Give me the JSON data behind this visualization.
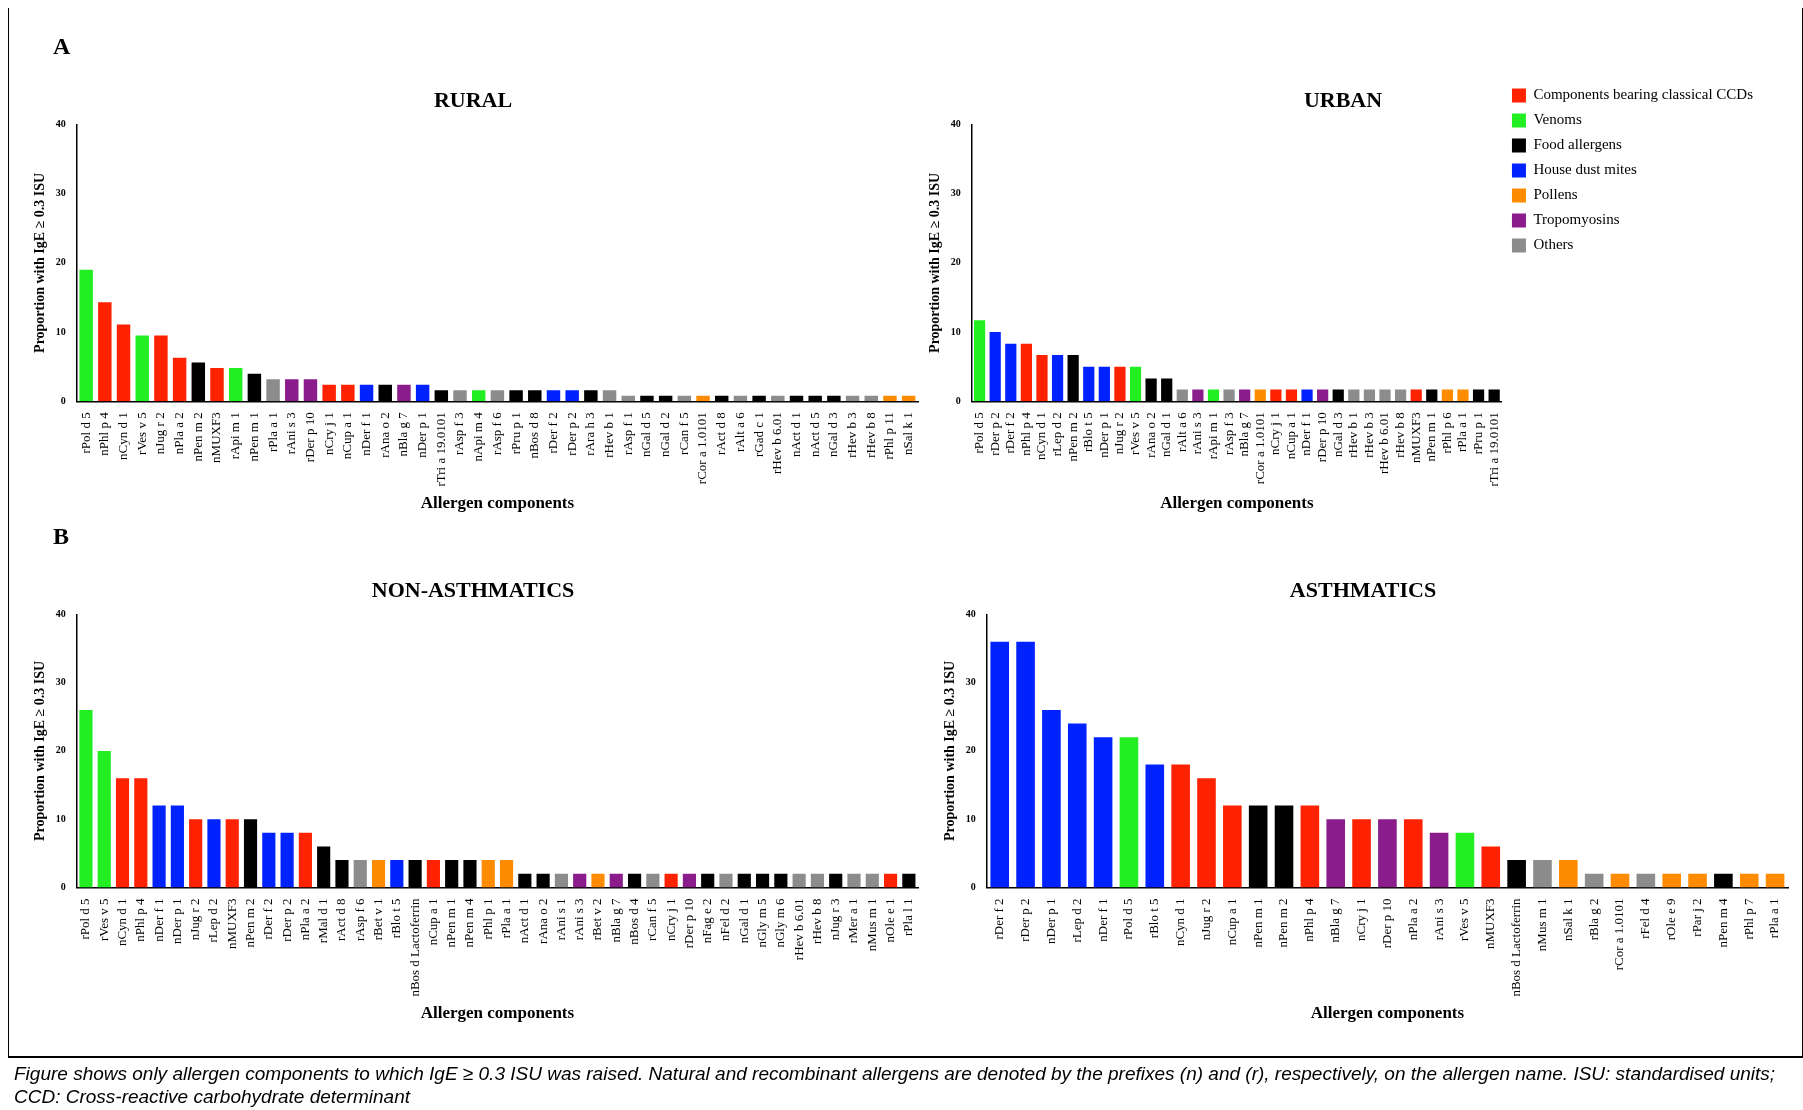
{
  "chart_data": [
    {
      "type": "bar",
      "title": "RURAL",
      "xlabel": "Allergen components",
      "ylabel": "Proportion with IgE ≥ 0.3 ISU",
      "annotations": [
        "A"
      ],
      "legend": false,
      "ylim": [
        0,
        40
      ],
      "yticks": [
        0,
        10,
        20,
        30,
        40
      ],
      "categories": [
        "rPol d 5",
        "nPhl p 4",
        "nCyn d 1",
        "rVes v 5",
        "nJug r 2",
        "nPla a 2",
        "nPen m 2",
        "nMUXF3",
        "rApi m 1",
        "nPen m 1",
        "rPla a 1",
        "rAni s 3",
        "rDer p 10",
        "nCry j 1",
        "nCup a 1",
        "nDer f 1",
        "rAna o 2",
        "nBla g 7",
        "nDer p 1",
        "rTri a 19.0101",
        "rAsp f 3",
        "nApi m 4",
        "rAsp f 6",
        "rPru p 1",
        "nBos d 8",
        "rDer f 2",
        "rDer p 2",
        "rAra h 3",
        "rHev b 1",
        "rAsp f 1",
        "nGal d 5",
        "nGal d 2",
        "rCan f 5",
        "rCor a 1.0101",
        "rAct d 8",
        "rAlt a 6",
        "rGad c 1",
        "rHev b 6.01",
        "nAct d 1",
        "nAct d 5",
        "nGal d 3",
        "rHev b 3",
        "rHev b 8",
        "rPhl p 11",
        "nSal k 1"
      ],
      "values": [
        19,
        14.3,
        11.1,
        9.5,
        9.5,
        6.3,
        5.6,
        4.8,
        4.8,
        4,
        3.2,
        3.2,
        3.2,
        2.4,
        2.4,
        2.4,
        2.4,
        2.4,
        2.4,
        1.6,
        1.6,
        1.6,
        1.6,
        1.6,
        1.6,
        1.6,
        1.6,
        1.6,
        1.6,
        0.8,
        0.8,
        0.8,
        0.8,
        0.8,
        0.8,
        0.8,
        0.8,
        0.8,
        0.8,
        0.8,
        0.8,
        0.8,
        0.8,
        0.8,
        0.8
      ],
      "colors": [
        "#22ee22",
        "#ff2200",
        "#ff2200",
        "#22ee22",
        "#ff2200",
        "#ff2200",
        "#000000",
        "#ff2200",
        "#22ee22",
        "#000000",
        "#8c8c8c",
        "#8b1c8b",
        "#8b1c8b",
        "#ff2200",
        "#ff2200",
        "#0022ff",
        "#000000",
        "#8b1c8b",
        "#0022ff",
        "#000000",
        "#8c8c8c",
        "#22ee22",
        "#8c8c8c",
        "#000000",
        "#000000",
        "#0022ff",
        "#0022ff",
        "#000000",
        "#8c8c8c",
        "#8c8c8c",
        "#000000",
        "#000000",
        "#8c8c8c",
        "#ff8c00",
        "#000000",
        "#8c8c8c",
        "#000000",
        "#8c8c8c",
        "#000000",
        "#000000",
        "#000000",
        "#8c8c8c",
        "#8c8c8c",
        "#ff8c00",
        "#ff8c00"
      ]
    },
    {
      "type": "bar",
      "title": "URBAN",
      "xlabel": "Allergen components",
      "ylabel": "Proportion with IgE ≥ 0.3 ISU",
      "legend": "right",
      "ylim": [
        0,
        40
      ],
      "yticks": [
        0,
        10,
        20,
        30,
        40
      ],
      "categories": [
        "rPol d 5",
        "rDer p 2",
        "rDer f 2",
        "nPhl p 4",
        "nCyn d 1",
        "rLep d 2",
        "nPen m 2",
        "rBlo t 5",
        "nDer p 1",
        "nJug r 2",
        "rVes v 5",
        "rAna o 2",
        "nGal d 1",
        "rAlt a 6",
        "rAni s 3",
        "rApi m 1",
        "rAsp f 3",
        "nBla g 7",
        "rCor a 1.0101",
        "nCry j 1",
        "nCup a 1",
        "nDer f 1",
        "rDer p 10",
        "nGal d 3",
        "rHev b 1",
        "rHev b 3",
        "rHev b 6.01",
        "rHev b 8",
        "nMUXF3",
        "nPen m 1",
        "rPhl p 6",
        "rPla a 1",
        "rPru p 1",
        "rTri a 19.0101"
      ],
      "series": [
        {
          "name": "Components bearing classical CCDs",
          "color": "#ff2200",
          "values": [
            null,
            null,
            null,
            8.3,
            6.7,
            null,
            null,
            null,
            null,
            5,
            null,
            null,
            null,
            null,
            null,
            null,
            null,
            null,
            null,
            1.7,
            1.7,
            null,
            null,
            null,
            null,
            null,
            null,
            null,
            1.7,
            null,
            null,
            null,
            null,
            null
          ]
        },
        {
          "name": "Venoms",
          "color": "#22ee22",
          "values": [
            11.7,
            null,
            null,
            null,
            null,
            null,
            null,
            null,
            null,
            null,
            5,
            null,
            null,
            null,
            null,
            1.7,
            null,
            null,
            null,
            null,
            null,
            null,
            null,
            null,
            null,
            null,
            null,
            null,
            null,
            null,
            null,
            null,
            null,
            null
          ]
        },
        {
          "name": "Food allergens",
          "color": "#000000",
          "values": [
            null,
            null,
            null,
            null,
            null,
            null,
            6.7,
            null,
            null,
            null,
            null,
            3.3,
            3.3,
            null,
            null,
            null,
            null,
            null,
            null,
            null,
            null,
            null,
            null,
            1.7,
            null,
            null,
            null,
            null,
            null,
            1.7,
            null,
            null,
            1.7,
            1.7
          ]
        },
        {
          "name": "House dust mites",
          "color": "#0022ff",
          "values": [
            null,
            10,
            8.3,
            null,
            null,
            6.7,
            null,
            5,
            5,
            null,
            null,
            null,
            null,
            null,
            null,
            null,
            null,
            null,
            null,
            null,
            null,
            1.7,
            null,
            null,
            null,
            null,
            null,
            null,
            null,
            null,
            null,
            null,
            null,
            null
          ]
        },
        {
          "name": "Pollens",
          "color": "#ff8c00",
          "values": [
            null,
            null,
            null,
            null,
            null,
            null,
            null,
            null,
            null,
            null,
            null,
            null,
            null,
            null,
            null,
            null,
            null,
            null,
            1.7,
            null,
            null,
            null,
            null,
            null,
            null,
            null,
            null,
            null,
            null,
            null,
            1.7,
            1.7,
            null,
            null
          ]
        },
        {
          "name": "Tropomyosins",
          "color": "#8b1c8b",
          "values": [
            null,
            null,
            null,
            null,
            null,
            null,
            null,
            null,
            null,
            null,
            null,
            null,
            null,
            null,
            1.7,
            null,
            null,
            1.7,
            null,
            null,
            null,
            null,
            1.7,
            null,
            null,
            null,
            null,
            null,
            null,
            null,
            null,
            null,
            null,
            null
          ]
        },
        {
          "name": "Others",
          "color": "#8c8c8c",
          "values": [
            null,
            null,
            null,
            null,
            null,
            null,
            null,
            null,
            null,
            null,
            null,
            null,
            null,
            1.7,
            null,
            null,
            1.7,
            null,
            null,
            null,
            null,
            null,
            null,
            null,
            1.7,
            1.7,
            1.7,
            1.7,
            null,
            null,
            null,
            null,
            null,
            null
          ]
        }
      ]
    },
    {
      "type": "bar",
      "title": "NON-ASTHMATICS",
      "xlabel": "Allergen components",
      "ylabel": "Proportion with IgE ≥ 0.3 ISU",
      "annotations": [
        "B"
      ],
      "legend": false,
      "ylim": [
        0,
        40
      ],
      "yticks": [
        0,
        10,
        20,
        30,
        40
      ],
      "categories": [
        "rPol d 5",
        "rVes v 5",
        "nCyn d 1",
        "nPhl p 4",
        "nDer f 1",
        "nDer p 1",
        "nJug r 2",
        "rLep d 2",
        "nMUXF3",
        "nPen m 2",
        "rDer f 2",
        "rDer p 2",
        "nPla a 2",
        "rMal d 1",
        "rAct d 8",
        "rAsp f 6",
        "rBet v 1",
        "rBlo t 5",
        "nBos d Lactoferrin",
        "nCup a 1",
        "nPen m 1",
        "nPen m 4",
        "rPhl p 1",
        "rPla a 1",
        "nAct d 1",
        "rAna o 2",
        "rAni s 1",
        "rAni s 3",
        "rBet v 2",
        "nBla g 7",
        "nBos d 4",
        "rCan f 5",
        "nCry j 1",
        "rDer p 10",
        "nFag e 2",
        "nFel d 2",
        "nGal d 1",
        "nGly m 5",
        "nGly m 6",
        "rHev b 6.01",
        "rHev b 8",
        "nJug r 3",
        "rMer a 1",
        "nMus m 1",
        "nOle e 1",
        "rPla l 1"
      ],
      "values": [
        26,
        20,
        16,
        16,
        12,
        12,
        10,
        10,
        10,
        10,
        8,
        8,
        8,
        6,
        4,
        4,
        4,
        4,
        4,
        4,
        4,
        4,
        4,
        4,
        2,
        2,
        2,
        2,
        2,
        2,
        2,
        2,
        2,
        2,
        2,
        2,
        2,
        2,
        2,
        2,
        2,
        2,
        2,
        2,
        2,
        2
      ],
      "colors": [
        "#22ee22",
        "#22ee22",
        "#ff2200",
        "#ff2200",
        "#0022ff",
        "#0022ff",
        "#ff2200",
        "#0022ff",
        "#ff2200",
        "#000000",
        "#0022ff",
        "#0022ff",
        "#ff2200",
        "#000000",
        "#000000",
        "#8c8c8c",
        "#ff8c00",
        "#0022ff",
        "#000000",
        "#ff2200",
        "#000000",
        "#000000",
        "#ff8c00",
        "#ff8c00",
        "#000000",
        "#000000",
        "#8c8c8c",
        "#8b1c8b",
        "#ff8c00",
        "#8b1c8b",
        "#000000",
        "#8c8c8c",
        "#ff2200",
        "#8b1c8b",
        "#000000",
        "#8c8c8c",
        "#000000",
        "#000000",
        "#000000",
        "#8c8c8c",
        "#8c8c8c",
        "#000000",
        "#8c8c8c",
        "#8c8c8c",
        "#ff2200",
        "#000000"
      ]
    },
    {
      "type": "bar",
      "title": "ASTHMATICS",
      "xlabel": "Allergen components",
      "ylabel": "Proportion with IgE ≥ 0.3 ISU",
      "annotations": [
        "Figure shows only allergen components to which IgE ≥ 0.3 ISU was raised. Natural and recombinant allergens are denoted by the prefixes (n) and (r), respectively, on the allergen name. ISU: standardised units; CCD: Cross-reactive carbohydrate determinant"
      ],
      "legend": false,
      "ylim": [
        0,
        40
      ],
      "yticks": [
        0,
        10,
        20,
        30,
        40
      ],
      "categories": [
        "rDer f 2",
        "rDer p 2",
        "nDer p 1",
        "rLep d 2",
        "nDer f 1",
        "rPol d 5",
        "rBlo t 5",
        "nCyn d 1",
        "nJug r 2",
        "nCup a 1",
        "nPen m 1",
        "nPen m 2",
        "nPhl p 4",
        "nBla g 7",
        "nCry j 1",
        "rDer p 10",
        "nPla a 2",
        "rAni s 3",
        "rVes v 5",
        "nMUXF3",
        "nBos d Lactoferrin",
        "nMus m 1",
        "nSal k 1",
        "rBla g 2",
        "rCor a 1.0101",
        "rFel d 4",
        "rOle e 9",
        "rPar j 2",
        "nPen m 4",
        "rPhl p 7",
        "rPla a 1"
      ],
      "values": [
        36,
        36,
        26,
        24,
        22,
        22,
        18,
        18,
        16,
        12,
        12,
        12,
        12,
        10,
        10,
        10,
        10,
        8,
        8,
        6,
        4,
        4,
        4,
        2,
        2,
        2,
        2,
        2,
        2,
        2,
        2
      ],
      "colors": [
        "#0022ff",
        "#0022ff",
        "#0022ff",
        "#0022ff",
        "#0022ff",
        "#22ee22",
        "#0022ff",
        "#ff2200",
        "#ff2200",
        "#ff2200",
        "#000000",
        "#000000",
        "#ff2200",
        "#8b1c8b",
        "#ff2200",
        "#8b1c8b",
        "#ff2200",
        "#8b1c8b",
        "#22ee22",
        "#ff2200",
        "#000000",
        "#8c8c8c",
        "#ff8c00",
        "#8c8c8c",
        "#ff8c00",
        "#8c8c8c",
        "#ff8c00",
        "#ff8c00",
        "#000000",
        "#ff8c00",
        "#ff8c00"
      ]
    }
  ]
}
